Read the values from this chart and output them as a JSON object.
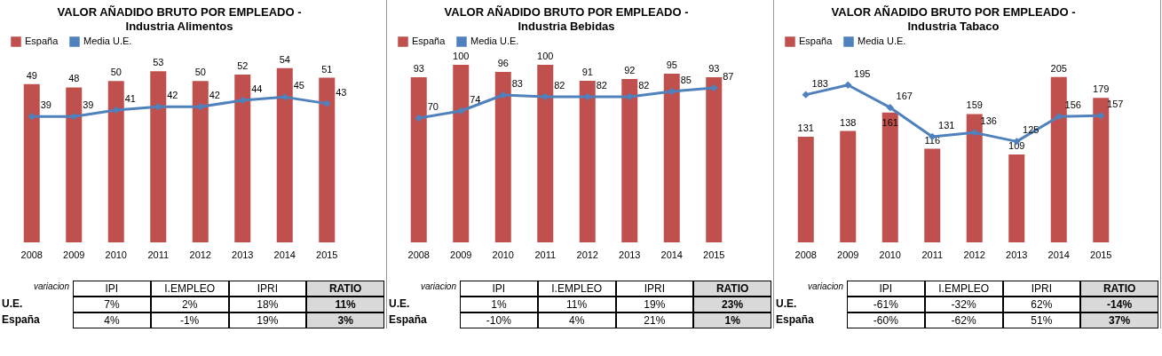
{
  "chart_data": [
    {
      "type": "bar",
      "title": "VALOR AÑADIDO BRUTO  POR EMPLEADO -",
      "subtitle": "Industria Alimentos",
      "categories": [
        "2008",
        "2009",
        "2010",
        "2011",
        "2012",
        "2013",
        "2014",
        "2015"
      ],
      "series": [
        {
          "name": "España",
          "color": "#c0504d",
          "values": [
            49,
            48,
            50,
            53,
            50,
            52,
            54,
            51
          ]
        },
        {
          "name": "Media U.E.",
          "type": "line",
          "color": "#4f81bd",
          "values": [
            39,
            39,
            41,
            42,
            42,
            44,
            45,
            43
          ]
        }
      ],
      "data_labels": true,
      "legend": "top",
      "marker": "diamond",
      "grid": false,
      "annotations": [
        "variacion",
        "IPI",
        "I.EMPLEO",
        "IPRI",
        "RATIO",
        "U.E.",
        "7%",
        "2%",
        "18%",
        "11%",
        "España",
        "4%",
        "-1%",
        "19%",
        "3%"
      ]
    },
    {
      "type": "bar",
      "title": "VALOR AÑADIDO BRUTO  POR EMPLEADO -",
      "subtitle": "Industria Bebidas",
      "categories": [
        "2008",
        "2009",
        "2010",
        "2011",
        "2012",
        "2013",
        "2014",
        "2015"
      ],
      "series": [
        {
          "name": "España",
          "color": "#c0504d",
          "values": [
            93,
            100,
            96,
            100,
            91,
            92,
            95,
            93
          ]
        },
        {
          "name": "Media U.E.",
          "type": "line",
          "color": "#4f81bd",
          "values": [
            70,
            74,
            83,
            82,
            82,
            82,
            85,
            87
          ]
        }
      ],
      "data_labels": true,
      "legend": "top",
      "marker": "diamond",
      "grid": false,
      "annotations": [
        "variacion",
        "IPI",
        "I.EMPLEO",
        "IPRI",
        "RATIO",
        "U.E.",
        "1%",
        "11%",
        "19%",
        "23%",
        "España",
        "-10%",
        "4%",
        "21%",
        "1%"
      ]
    },
    {
      "type": "bar",
      "title": "VALOR AÑADIDO BRUTO  POR EMPLEADO -",
      "subtitle": "Industria Tabaco",
      "categories": [
        "2008",
        "2009",
        "2010",
        "2011",
        "2012",
        "2013",
        "2014",
        "2015"
      ],
      "series": [
        {
          "name": "España",
          "color": "#c0504d",
          "values": [
            131,
            138,
            161,
            116,
            159,
            109,
            205,
            179
          ]
        },
        {
          "name": "Media U.E.",
          "type": "line",
          "color": "#4f81bd",
          "values": [
            183,
            195,
            167,
            131,
            136,
            125,
            156,
            157
          ]
        }
      ],
      "data_labels": true,
      "legend": "top",
      "marker": "diamond",
      "grid": false,
      "annotations": [
        "variacion",
        "IPI",
        "I.EMPLEO",
        "IPRI",
        "RATIO",
        "U.E.",
        "-61%",
        "-32%",
        "62%",
        "-14%",
        "España",
        "-60%",
        "-62%",
        "51%",
        "37%"
      ]
    }
  ]
}
